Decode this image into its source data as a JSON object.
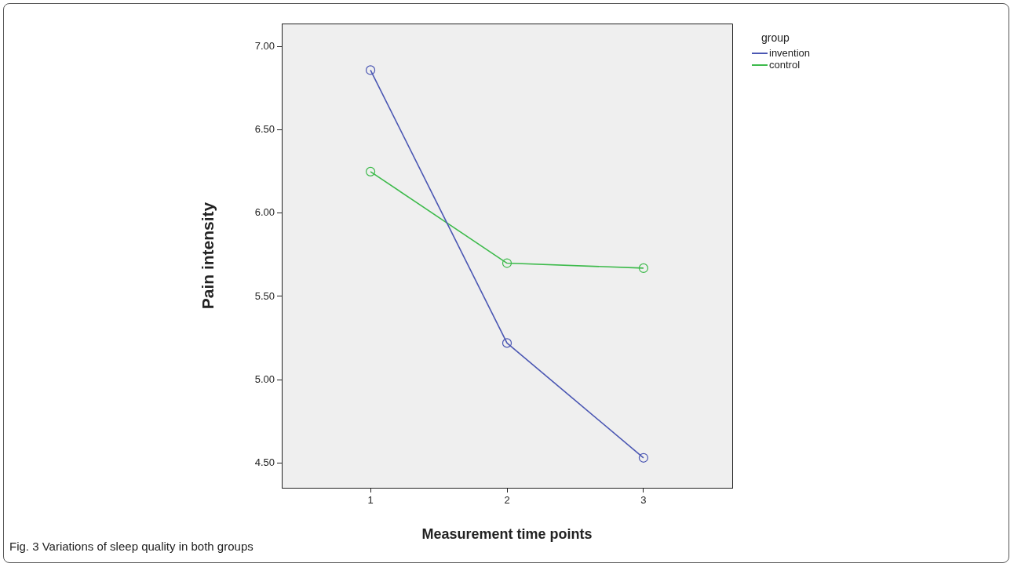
{
  "chart_data": {
    "type": "line",
    "xlabel": "Measurement time points",
    "ylabel": "Pain intensity",
    "legend_title": "group",
    "x": [
      1,
      2,
      3
    ],
    "xlim": [
      0.35,
      3.65
    ],
    "xticks": [
      1,
      2,
      3
    ],
    "ylim": [
      4.35,
      7.14
    ],
    "yticks": [
      {
        "value": 4.5,
        "label": "4.50"
      },
      {
        "value": 5,
        "label": "5.00"
      },
      {
        "value": 5.5,
        "label": "5.50"
      },
      {
        "value": 6,
        "label": "6.00"
      },
      {
        "value": 6.5,
        "label": "6.50"
      },
      {
        "value": 7,
        "label": "7.00"
      }
    ],
    "series": [
      {
        "name": "invention",
        "color": "#4b57b3",
        "values": [
          6.86,
          5.22,
          4.53
        ]
      },
      {
        "name": "control",
        "color": "#3dba4b",
        "values": [
          6.25,
          5.7,
          5.67
        ]
      }
    ],
    "grid": false,
    "legend": "top right",
    "marker": "circle",
    "line_style": "solid",
    "annotations": [
      "Fig. 3 Variations of sleep quality in both groups"
    ]
  }
}
